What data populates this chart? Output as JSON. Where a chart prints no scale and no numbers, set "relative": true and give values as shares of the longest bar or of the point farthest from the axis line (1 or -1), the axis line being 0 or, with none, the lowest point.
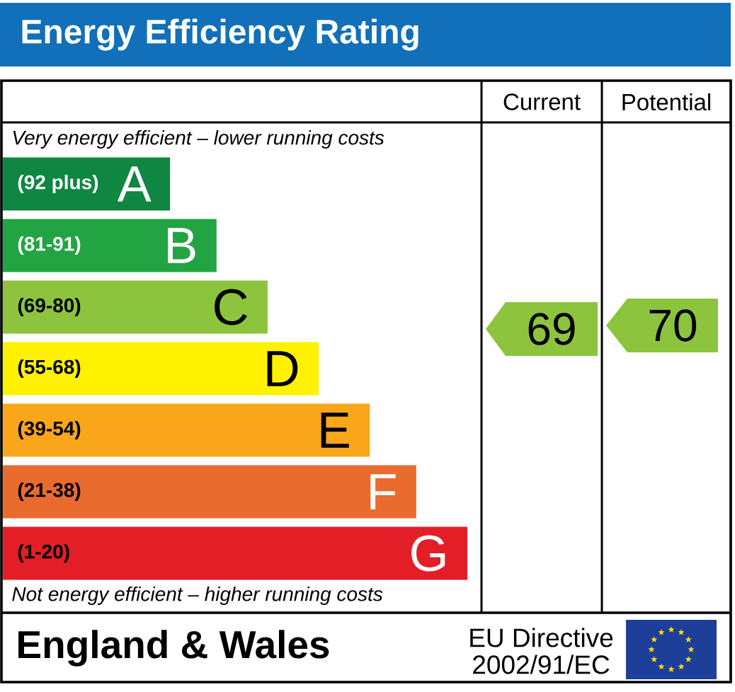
{
  "chart_data": {
    "type": "bar",
    "orientation": "horizontal",
    "relative": true,
    "title": "Energy Efficiency Rating",
    "categories": [
      "A",
      "B",
      "C",
      "D",
      "E",
      "F",
      "G"
    ],
    "values": [
      0.36,
      0.46,
      0.57,
      0.68,
      0.79,
      0.89,
      1
    ],
    "colors": [
      "#0f8641",
      "#23a443",
      "#8cc43e",
      "#fff200",
      "#faa61a",
      "#ea6b2e",
      "#e31e26"
    ],
    "annotations": [
      "Very energy efficient – lower running costs",
      "Not energy efficient – higher running costs",
      "Current",
      "Potential",
      "England & Wales",
      "EU Directive",
      "2002/91/EC",
      "69",
      "70",
      "(92 plus)",
      "(81-91)",
      "(69-80)",
      "(55-68)",
      "(39-54)",
      "(21-38)",
      "(1-20)"
    ]
  }
}
